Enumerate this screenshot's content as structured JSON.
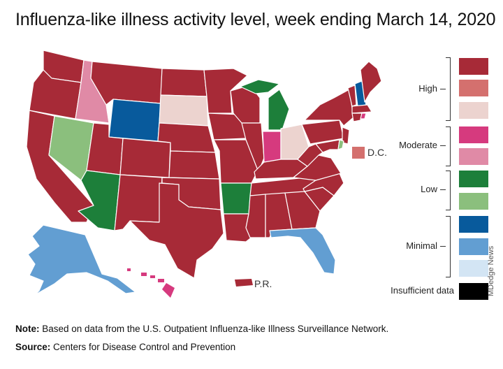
{
  "title": "Influenza-like illness activity level, week ending March 14, 2020",
  "colors": {
    "high_1": "#a72a37",
    "high_2": "#d4706e",
    "high_3": "#ecd3cf",
    "moderate_1": "#d63a7e",
    "moderate_2": "#e08aa6",
    "low_1": "#1d7f3a",
    "low_2": "#8bbf7d",
    "minimal_1": "#085a9c",
    "minimal_2": "#629ed2",
    "minimal_3": "#d3e5f4",
    "insufficient": "#000000"
  },
  "legend": {
    "high": "High",
    "moderate": "Moderate",
    "low": "Low",
    "minimal": "Minimal",
    "insufficient": "Insufficient data"
  },
  "map_labels": {
    "dc": "D.C.",
    "pr": "P.R."
  },
  "credit": "MDedge News",
  "note": {
    "label": "Note:",
    "text": " Based on data from the U.S. Outpatient Influenza-like Illness Surveillance Network."
  },
  "source": {
    "label": "Source:",
    "text": " Centers for Disease Control and Prevention"
  }
}
